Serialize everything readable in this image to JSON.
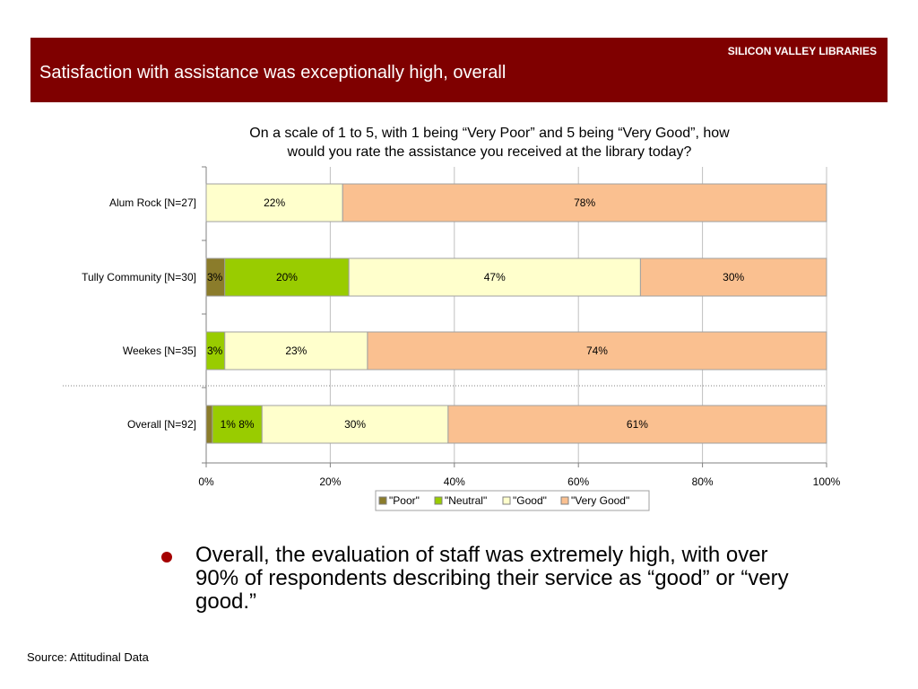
{
  "header": {
    "brand": "SILICON VALLEY LIBRARIES",
    "title": "Satisfaction with assistance was exceptionally high, overall",
    "background_color": "#7f0000"
  },
  "chart_data": {
    "type": "bar",
    "orientation": "horizontal",
    "stacked": true,
    "title": "On a scale of 1 to 5, with 1 being “Very Poor” and 5 being “Very Good”, how would you rate the assistance you received at the library today?",
    "xlabel": "",
    "ylabel": "",
    "xlim": [
      0,
      100
    ],
    "x_ticks": [
      "0%",
      "20%",
      "40%",
      "60%",
      "80%",
      "100%"
    ],
    "grid": true,
    "legend_position": "bottom",
    "categories": [
      "Alum Rock [N=27]",
      "Tully Community [N=30]",
      "Weekes [N=35]",
      "Overall [N=92]"
    ],
    "series": [
      {
        "name": "\"Poor\"",
        "color": "#8b7c2b",
        "values": [
          0,
          3,
          0,
          1
        ],
        "labels": [
          "",
          "3%",
          "",
          ""
        ]
      },
      {
        "name": "\"Neutral\"",
        "color": "#99cc00",
        "values": [
          0,
          20,
          3,
          8
        ],
        "labels": [
          "",
          "20%",
          "3%",
          "1% 8%"
        ]
      },
      {
        "name": "\"Good\"",
        "color": "#ffffcc",
        "values": [
          22,
          47,
          23,
          30
        ],
        "labels": [
          "22%",
          "47%",
          "23%",
          "30%"
        ]
      },
      {
        "name": "\"Very Good\"",
        "color": "#fac090",
        "values": [
          78,
          30,
          74,
          61
        ],
        "labels": [
          "78%",
          "30%",
          "74%",
          "61%"
        ]
      }
    ]
  },
  "bullet": {
    "text": "Overall, the evaluation of staff was extremely high, with over 90% of respondents describing their service as “good” or “very good.”",
    "color": "#a50000"
  },
  "footer": {
    "source": "Source: Attitudinal Data"
  }
}
